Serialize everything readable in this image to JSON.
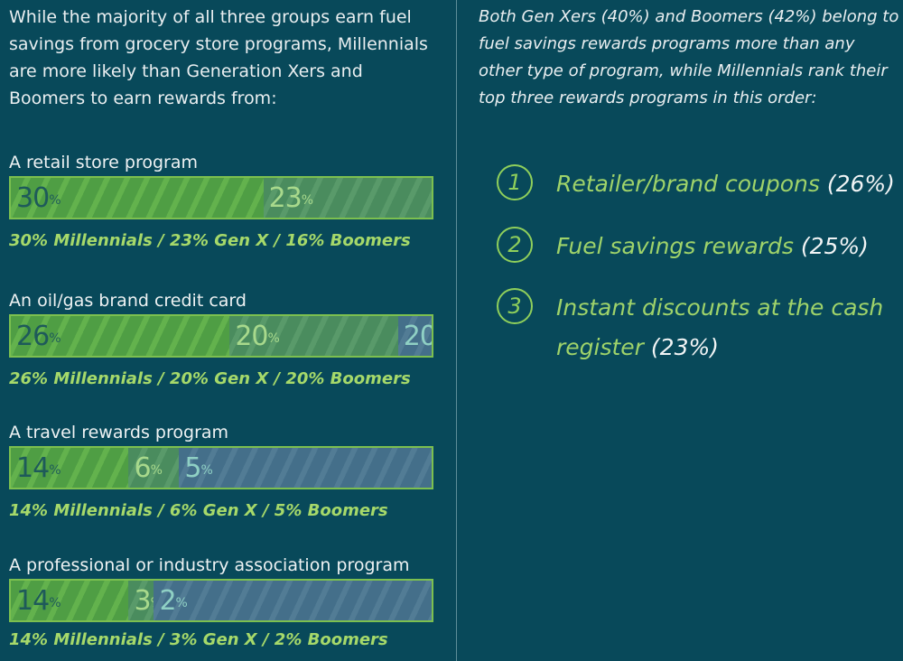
{
  "left": {
    "intro": "While the majority of all three groups earn fuel savings from grocery store programs, Millennials are more likely than Generation Xers and Boomers to earn rewards from:"
  },
  "right": {
    "intro": "Both Gen Xers (40%) and Boomers (42%) belong to fuel savings rewards programs more than any other type of program, while Millennials rank their top three rewards programs in this order:",
    "ranks": [
      {
        "num": "1",
        "label": "Retailer/brand coupons",
        "pct": "(26%)"
      },
      {
        "num": "2",
        "label": "Fuel savings rewards",
        "pct": "(25%)"
      },
      {
        "num": "3",
        "label": "Instant discounts at the cash register",
        "pct": "(23%)"
      }
    ]
  },
  "colors": {
    "background": "#08495a",
    "millennials": "#5aa84a",
    "genx": "#4f9160",
    "boomers": "#4a7590",
    "caption": "#a6d96a"
  },
  "chart_data": {
    "type": "bar",
    "categories": [
      "A retail store program",
      "An oil/gas brand credit card",
      "A travel rewards program",
      "A professional or industry association program"
    ],
    "series": [
      {
        "name": "Millennials",
        "values": [
          30,
          26,
          14,
          14
        ]
      },
      {
        "name": "Gen X",
        "values": [
          23,
          20,
          6,
          3
        ]
      },
      {
        "name": "Boomers",
        "values": [
          16,
          20,
          5,
          2
        ]
      }
    ],
    "value_labels": [
      [
        "30",
        "23",
        "16"
      ],
      [
        "26",
        "20",
        "20"
      ],
      [
        "14",
        "6",
        "5"
      ],
      [
        "14",
        "3",
        "2"
      ]
    ],
    "captions": [
      "30% Millennials  /  23% Gen X  /  16% Boomers",
      "26% Millennials  /  20% Gen X  /  20% Boomers",
      "14% Millennials  /  6% Gen X  /  5% Boomers",
      "14% Millennials  /  3% Gen X  /  2% Boomers"
    ],
    "unit": "%"
  }
}
